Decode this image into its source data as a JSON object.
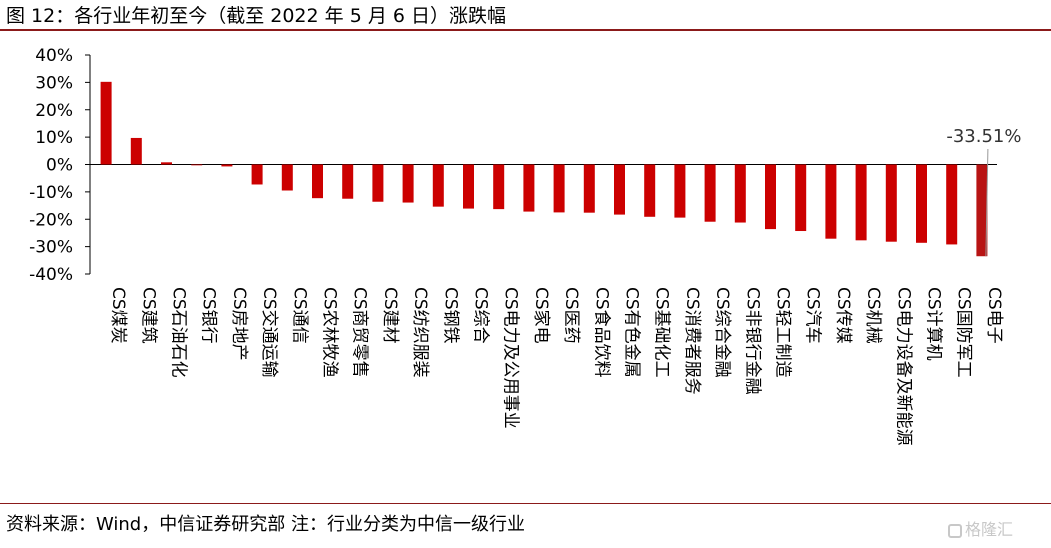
{
  "title": "图 12：各行业年初至今（截至 2022 年 5 月 6 日）涨跌幅",
  "source": "资料来源：Wind，中信证券研究部  注：行业分类为中信一级行业",
  "watermark": "格隆汇",
  "colors": {
    "bar": "#cc0000",
    "bar_highlight": "#b81414",
    "rule": "#8b1a1a",
    "axis": "#000000"
  },
  "chart_data": {
    "type": "bar",
    "categories": [
      "CS煤炭",
      "CS建筑",
      "CS石油石化",
      "CS银行",
      "CS房地产",
      "CS交通运输",
      "CS通信",
      "CS农林牧渔",
      "CS商贸零售",
      "CS建材",
      "CS纺织服装",
      "CS钢铁",
      "CS综合",
      "CS电力及公用事业",
      "CS家电",
      "CS医药",
      "CS食品饮料",
      "CS有色金属",
      "CS基础化工",
      "CS消费者服务",
      "CS综合金融",
      "CS非银行金融",
      "CS轻工制造",
      "CS汽车",
      "CS传媒",
      "CS机械",
      "CS电力设备及新能源",
      "CS计算机",
      "CS国防军工",
      "CS电子"
    ],
    "values": [
      30.2,
      9.7,
      0.8,
      -0.3,
      -0.7,
      -7.3,
      -9.5,
      -12.3,
      -12.5,
      -13.6,
      -13.9,
      -15.4,
      -16.1,
      -16.3,
      -17.2,
      -17.5,
      -17.6,
      -18.3,
      -19.1,
      -19.4,
      -20.9,
      -21.2,
      -23.6,
      -24.3,
      -27.1,
      -27.7,
      -28.2,
      -28.6,
      -29.2,
      -33.51
    ],
    "ylim": [
      -40,
      40
    ],
    "yticks": [
      "40%",
      "30%",
      "20%",
      "10%",
      "0%",
      "-10%",
      "-20%",
      "-30%",
      "-40%"
    ],
    "ytick_values": [
      40,
      30,
      20,
      10,
      0,
      -10,
      -20,
      -30,
      -40
    ],
    "annotations": [
      {
        "category": "CS电子",
        "text": "-33.51%"
      }
    ],
    "grid": false,
    "legend": "none"
  }
}
